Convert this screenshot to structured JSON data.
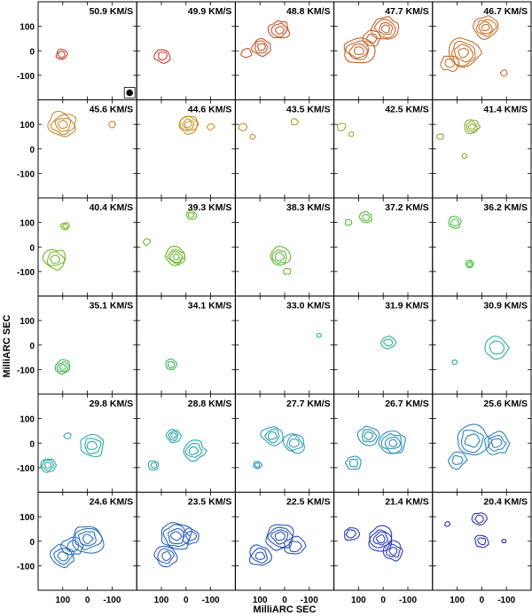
{
  "figure": {
    "xlabel": "MilliARC SEC",
    "ylabel": "MilliARC SEC",
    "x_ticks": [
      "100",
      "0",
      "-100"
    ],
    "y_ticks": [
      "100",
      "0",
      "-100"
    ],
    "axis_range_mas": [
      200,
      -200
    ],
    "grid_columns": 5,
    "grid_rows": 6
  },
  "panels": [
    {
      "label": "50.9 KM/S",
      "color": "#c0392b",
      "beam": true,
      "components": [
        {
          "x": 105,
          "y": -15,
          "size": 14,
          "levels": 2
        }
      ]
    },
    {
      "label": "49.9 KM/S",
      "color": "#c0392b",
      "components": [
        {
          "x": 95,
          "y": -20,
          "size": 18,
          "levels": 2
        }
      ]
    },
    {
      "label": "48.8 KM/S",
      "color": "#c7522a",
      "components": [
        {
          "x": 20,
          "y": 85,
          "size": 24,
          "levels": 3
        },
        {
          "x": 95,
          "y": 15,
          "size": 22,
          "levels": 3
        },
        {
          "x": 155,
          "y": -10,
          "size": 12,
          "levels": 1
        }
      ]
    },
    {
      "label": "47.7 KM/S",
      "color": "#c8642a",
      "components": [
        {
          "x": -10,
          "y": 90,
          "size": 30,
          "levels": 4
        },
        {
          "x": 100,
          "y": 0,
          "size": 35,
          "levels": 4
        },
        {
          "x": 45,
          "y": 50,
          "size": 20,
          "levels": 2
        }
      ]
    },
    {
      "label": "46.7 KM/S",
      "color": "#c8702a",
      "components": [
        {
          "x": -15,
          "y": 95,
          "size": 28,
          "levels": 4
        },
        {
          "x": 75,
          "y": -10,
          "size": 38,
          "levels": 4
        },
        {
          "x": 130,
          "y": -50,
          "size": 20,
          "levels": 2
        },
        {
          "x": -90,
          "y": -90,
          "size": 8,
          "levels": 1
        }
      ]
    },
    {
      "label": "45.6 KM/S",
      "color": "#c68a2c",
      "components": [
        {
          "x": 100,
          "y": 100,
          "size": 32,
          "levels": 4
        },
        {
          "x": -100,
          "y": 100,
          "size": 8,
          "levels": 1
        }
      ]
    },
    {
      "label": "44.6 KM/S",
      "color": "#c8962a",
      "components": [
        {
          "x": -10,
          "y": 100,
          "size": 24,
          "levels": 4
        },
        {
          "x": -100,
          "y": 90,
          "size": 8,
          "levels": 1
        }
      ]
    },
    {
      "label": "43.5 KM/S",
      "color": "#b89a2a",
      "components": [
        {
          "x": 170,
          "y": 90,
          "size": 10,
          "levels": 1
        },
        {
          "x": -40,
          "y": 110,
          "size": 8,
          "levels": 1
        },
        {
          "x": 130,
          "y": 50,
          "size": 6,
          "levels": 1
        }
      ]
    },
    {
      "label": "42.5 KM/S",
      "color": "#9aaa2a",
      "components": [
        {
          "x": 170,
          "y": 90,
          "size": 10,
          "levels": 1
        },
        {
          "x": 130,
          "y": 60,
          "size": 6,
          "levels": 1
        }
      ]
    },
    {
      "label": "41.4 KM/S",
      "color": "#8aaa2a",
      "components": [
        {
          "x": 40,
          "y": 90,
          "size": 18,
          "levels": 3
        },
        {
          "x": 170,
          "y": 50,
          "size": 8,
          "levels": 1
        },
        {
          "x": 70,
          "y": -30,
          "size": 6,
          "levels": 1
        }
      ]
    },
    {
      "label": "40.4 KM/S",
      "color": "#7ab82a",
      "components": [
        {
          "x": 90,
          "y": 85,
          "size": 10,
          "levels": 2
        },
        {
          "x": 130,
          "y": -50,
          "size": 26,
          "levels": 3
        }
      ]
    },
    {
      "label": "39.3 KM/S",
      "color": "#6ab82a",
      "components": [
        {
          "x": 40,
          "y": -40,
          "size": 24,
          "levels": 4
        },
        {
          "x": -20,
          "y": 130,
          "size": 12,
          "levels": 2
        },
        {
          "x": 160,
          "y": 20,
          "size": 8,
          "levels": 1
        }
      ]
    },
    {
      "label": "38.3 KM/S",
      "color": "#5aba30",
      "components": [
        {
          "x": 20,
          "y": -40,
          "size": 24,
          "levels": 3
        },
        {
          "x": -10,
          "y": -100,
          "size": 8,
          "levels": 1
        }
      ]
    },
    {
      "label": "37.2 KM/S",
      "color": "#4fbf3a",
      "components": [
        {
          "x": 70,
          "y": 120,
          "size": 14,
          "levels": 2
        },
        {
          "x": 140,
          "y": 100,
          "size": 8,
          "levels": 1
        }
      ]
    },
    {
      "label": "36.2 KM/S",
      "color": "#46bf44",
      "components": [
        {
          "x": 110,
          "y": 100,
          "size": 16,
          "levels": 2
        },
        {
          "x": 50,
          "y": -70,
          "size": 10,
          "levels": 2
        }
      ]
    },
    {
      "label": "35.1 KM/S",
      "color": "#3cbb4a",
      "components": [
        {
          "x": 100,
          "y": -90,
          "size": 18,
          "levels": 3
        }
      ]
    },
    {
      "label": "34.1 KM/S",
      "color": "#38b854",
      "components": [
        {
          "x": 60,
          "y": -80,
          "size": 14,
          "levels": 2
        }
      ]
    },
    {
      "label": "33.0 KM/S",
      "color": "#33b66a",
      "components": [
        {
          "x": -140,
          "y": 40,
          "size": 5,
          "levels": 1
        }
      ]
    },
    {
      "label": "31.9 KM/S",
      "color": "#2fb487",
      "components": [
        {
          "x": -20,
          "y": 10,
          "size": 16,
          "levels": 2
        }
      ]
    },
    {
      "label": "30.9 KM/S",
      "color": "#2db19a",
      "components": [
        {
          "x": -60,
          "y": -10,
          "size": 28,
          "levels": 2
        },
        {
          "x": 110,
          "y": -70,
          "size": 6,
          "levels": 1
        }
      ]
    },
    {
      "label": "29.8 KM/S",
      "color": "#2aab9c",
      "components": [
        {
          "x": 160,
          "y": -90,
          "size": 18,
          "levels": 3
        },
        {
          "x": -20,
          "y": -10,
          "size": 28,
          "levels": 3
        },
        {
          "x": 80,
          "y": 30,
          "size": 8,
          "levels": 1
        }
      ]
    },
    {
      "label": "28.8 KM/S",
      "color": "#2aa6a8",
      "components": [
        {
          "x": 130,
          "y": -90,
          "size": 12,
          "levels": 2
        },
        {
          "x": 50,
          "y": 30,
          "size": 16,
          "levels": 3
        },
        {
          "x": -30,
          "y": -30,
          "size": 26,
          "levels": 3
        }
      ]
    },
    {
      "label": "27.7 KM/S",
      "color": "#2a9db6",
      "components": [
        {
          "x": 50,
          "y": 30,
          "size": 24,
          "levels": 3
        },
        {
          "x": -40,
          "y": 0,
          "size": 26,
          "levels": 3
        },
        {
          "x": 110,
          "y": -90,
          "size": 10,
          "levels": 2
        }
      ]
    },
    {
      "label": "26.7 KM/S",
      "color": "#2a90b8",
      "components": [
        {
          "x": 60,
          "y": 30,
          "size": 24,
          "levels": 3
        },
        {
          "x": -40,
          "y": 0,
          "size": 30,
          "levels": 4
        },
        {
          "x": 120,
          "y": -80,
          "size": 18,
          "levels": 2
        }
      ]
    },
    {
      "label": "25.6 KM/S",
      "color": "#2a82be",
      "components": [
        {
          "x": 40,
          "y": 10,
          "size": 40,
          "levels": 3
        },
        {
          "x": -60,
          "y": 0,
          "size": 28,
          "levels": 3
        },
        {
          "x": 100,
          "y": -70,
          "size": 20,
          "levels": 2
        }
      ]
    },
    {
      "label": "24.6 KM/S",
      "color": "#2a70c0",
      "components": [
        {
          "x": 0,
          "y": 10,
          "size": 38,
          "levels": 4
        },
        {
          "x": 100,
          "y": -60,
          "size": 28,
          "levels": 3
        },
        {
          "x": 60,
          "y": -20,
          "size": 24,
          "levels": 2
        }
      ]
    },
    {
      "label": "23.5 KM/S",
      "color": "#2a60c0",
      "components": [
        {
          "x": 40,
          "y": 20,
          "size": 36,
          "levels": 4
        },
        {
          "x": 80,
          "y": -60,
          "size": 26,
          "levels": 3
        },
        {
          "x": -20,
          "y": 20,
          "size": 20,
          "levels": 2
        }
      ]
    },
    {
      "label": "22.5 KM/S",
      "color": "#2a52bc",
      "components": [
        {
          "x": 20,
          "y": 20,
          "size": 34,
          "levels": 4
        },
        {
          "x": 100,
          "y": -60,
          "size": 26,
          "levels": 3
        },
        {
          "x": -40,
          "y": -20,
          "size": 24,
          "levels": 2
        }
      ]
    },
    {
      "label": "21.4 KM/S",
      "color": "#2a3cbc",
      "components": [
        {
          "x": 10,
          "y": 10,
          "size": 30,
          "levels": 4
        },
        {
          "x": 130,
          "y": 30,
          "size": 18,
          "levels": 2
        },
        {
          "x": -40,
          "y": -40,
          "size": 24,
          "levels": 3
        }
      ]
    },
    {
      "label": "20.4 KM/S",
      "color": "#2a30b8",
      "components": [
        {
          "x": 10,
          "y": 90,
          "size": 16,
          "levels": 2
        },
        {
          "x": 0,
          "y": 0,
          "size": 16,
          "levels": 2
        },
        {
          "x": 140,
          "y": 70,
          "size": 6,
          "levels": 1
        },
        {
          "x": -90,
          "y": 0,
          "size": 5,
          "levels": 1
        }
      ]
    }
  ]
}
